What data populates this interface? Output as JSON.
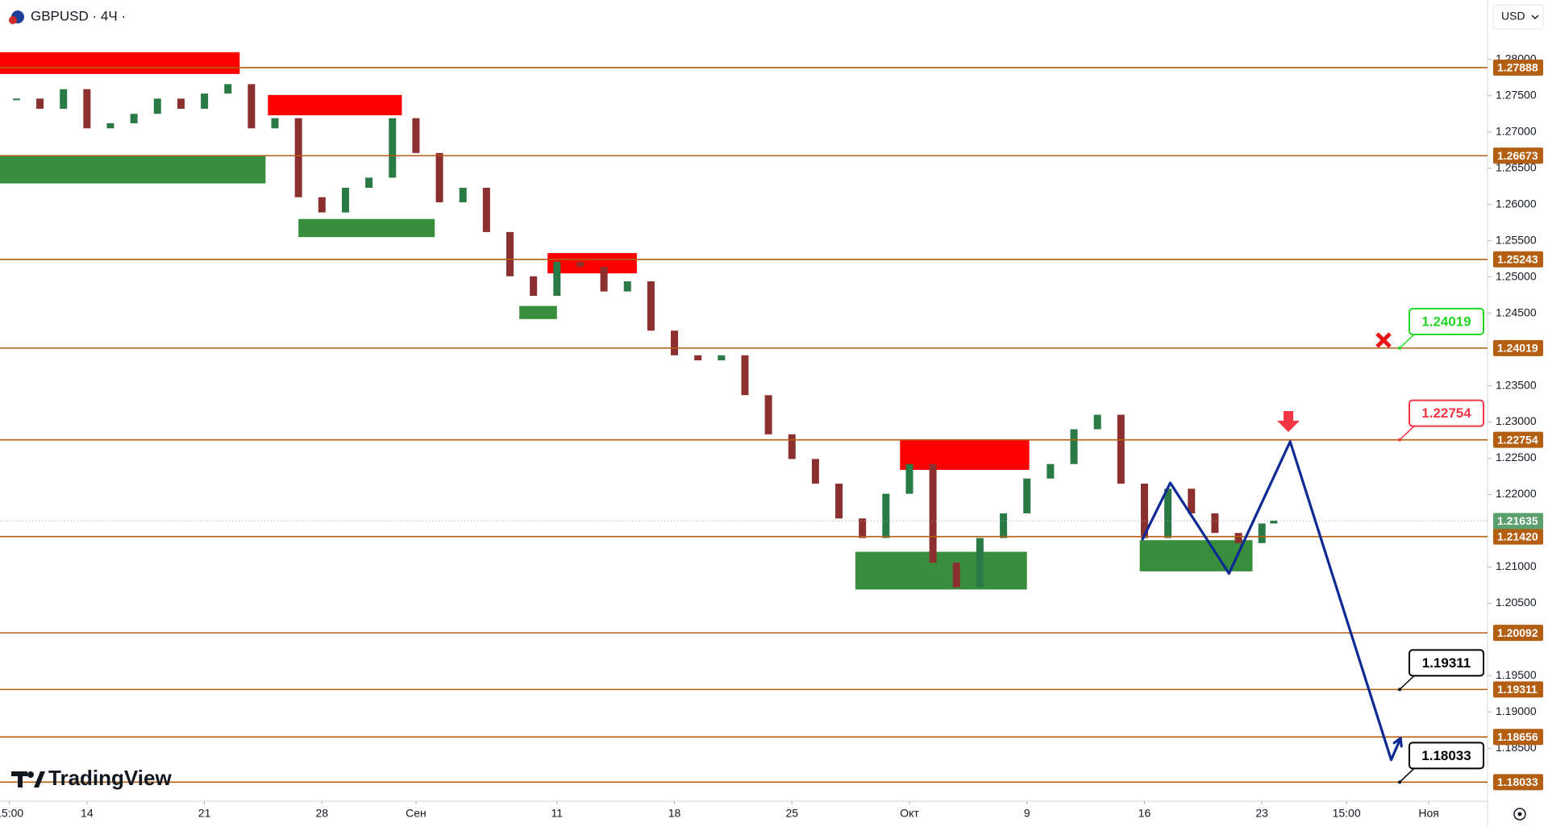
{
  "header": {
    "symbol": "GBPUSD · 4Ч ·",
    "currency": "USD"
  },
  "branding": "TradingView",
  "chart_data": {
    "type": "candlestick",
    "xlim": [
      -3.7,
      59.6
    ],
    "ylim": [
      1.1777,
      1.2882
    ],
    "yticks": [
      {
        "value": 1.28,
        "label": "1.28000"
      },
      {
        "value": 1.275,
        "label": "1.27500"
      },
      {
        "value": 1.27,
        "label": "1.27000"
      },
      {
        "value": 1.265,
        "label": "1.26500"
      },
      {
        "value": 1.26,
        "label": "1.26000"
      },
      {
        "value": 1.255,
        "label": "1.25500"
      },
      {
        "value": 1.25,
        "label": "1.25000"
      },
      {
        "value": 1.245,
        "label": "1.24500"
      },
      {
        "value": 1.235,
        "label": "1.23500"
      },
      {
        "value": 1.23,
        "label": "1.23000"
      },
      {
        "value": 1.225,
        "label": "1.22500"
      },
      {
        "value": 1.22,
        "label": "1.22000"
      },
      {
        "value": 1.21,
        "label": "1.21000"
      },
      {
        "value": 1.205,
        "label": "1.20500"
      },
      {
        "value": 1.195,
        "label": "1.19500"
      },
      {
        "value": 1.19,
        "label": "1.19000"
      },
      {
        "value": 1.185,
        "label": "1.18500"
      }
    ],
    "xticks": [
      {
        "value": -3.3,
        "label": "15:00"
      },
      {
        "value": 0,
        "label": "14"
      },
      {
        "value": 5,
        "label": "21"
      },
      {
        "value": 10,
        "label": "28"
      },
      {
        "value": 14,
        "label": "Сен"
      },
      {
        "value": 20,
        "label": "11"
      },
      {
        "value": 25,
        "label": "18"
      },
      {
        "value": 30,
        "label": "25"
      },
      {
        "value": 35,
        "label": "Окт"
      },
      {
        "value": 40,
        "label": "9"
      },
      {
        "value": 45,
        "label": "16"
      },
      {
        "value": 50,
        "label": "23"
      },
      {
        "value": 53.6,
        "label": "15:00"
      },
      {
        "value": 57.1,
        "label": "Ноя"
      }
    ],
    "x": [
      -3,
      -2,
      -1,
      0,
      1,
      2,
      3,
      4,
      5,
      6,
      7,
      8,
      9,
      10,
      11,
      12,
      13,
      14,
      15,
      16,
      17,
      18,
      19,
      20,
      21,
      22,
      23,
      24,
      25,
      26,
      27,
      28,
      29,
      30,
      31,
      32,
      33,
      34,
      35,
      36,
      37,
      38,
      39,
      40,
      41,
      42,
      43,
      44,
      45,
      46,
      47,
      48,
      49,
      50,
      50.5
    ],
    "close": [
      1.2746,
      1.2732,
      1.2759,
      1.2705,
      1.2712,
      1.2725,
      1.2746,
      1.2732,
      1.2753,
      1.2766,
      1.2705,
      1.2719,
      1.261,
      1.2589,
      1.2623,
      1.2637,
      1.2719,
      1.2671,
      1.2603,
      1.2623,
      1.2562,
      1.2501,
      1.2474,
      1.2521,
      1.2514,
      1.248,
      1.2494,
      1.2426,
      1.2392,
      1.2385,
      1.2392,
      1.2337,
      1.2283,
      1.2249,
      1.2215,
      1.2167,
      1.214,
      1.2201,
      1.2242,
      1.2106,
      1.2072,
      1.214,
      1.2174,
      1.2222,
      1.2242,
      1.229,
      1.231,
      1.2215,
      1.214,
      1.2208,
      1.2174,
      1.2147,
      1.2133,
      1.216,
      1.2164
    ],
    "up_color": "#2a7a46",
    "down_color": "#8c2f2f",
    "levels": [
      1.27888,
      1.26673,
      1.25243,
      1.24019,
      1.22754,
      {
        "value": 1.2142,
        "label": "1.21420"
      },
      1.20092,
      1.19311,
      1.18656,
      1.18033
    ],
    "level_color": "#b35e10",
    "current_price": 1.21635,
    "current_color": "#5b9f6e",
    "zones": [
      {
        "color": "#ff0000",
        "x": [
          -3.7,
          6.5
        ],
        "y": [
          1.278,
          1.281
        ]
      },
      {
        "color": "#388e3c",
        "x": [
          -3.7,
          7.6
        ],
        "y": [
          1.2629,
          1.2667
        ]
      },
      {
        "color": "#ff0000",
        "x": [
          7.7,
          13.4
        ],
        "y": [
          1.2723,
          1.2751
        ]
      },
      {
        "color": "#388e3c",
        "x": [
          9.0,
          14.8
        ],
        "y": [
          1.2555,
          1.258
        ]
      },
      {
        "color": "#ff0000",
        "x": [
          19.6,
          23.4
        ],
        "y": [
          1.2505,
          1.2533
        ]
      },
      {
        "color": "#388e3c",
        "x": [
          18.4,
          20.0
        ],
        "y": [
          1.2442,
          1.246
        ]
      },
      {
        "color": "#ff0000",
        "x": [
          34.6,
          40.1
        ],
        "y": [
          1.2234,
          1.2275
        ]
      },
      {
        "color": "#388e3c",
        "x": [
          32.7,
          40.0
        ],
        "y": [
          1.2069,
          1.2121
        ]
      },
      {
        "color": "#388e3c",
        "x": [
          44.8,
          49.6
        ],
        "y": [
          1.2094,
          1.2137
        ]
      }
    ],
    "projection": {
      "color": "#0d2a94",
      "x": [
        44.9,
        46.1,
        48.6,
        51.2,
        55.5,
        55.9
      ],
      "values": [
        1.2137,
        1.2216,
        1.2091,
        1.2273,
        1.1834,
        1.1864
      ]
    },
    "callouts": [
      {
        "value": 1.24019,
        "color": "#22d622"
      },
      {
        "value": 1.22754,
        "color": "#f23645"
      },
      {
        "value": 1.19311,
        "color": "#000000"
      },
      {
        "value": 1.18033,
        "color": "#000000"
      }
    ]
  }
}
